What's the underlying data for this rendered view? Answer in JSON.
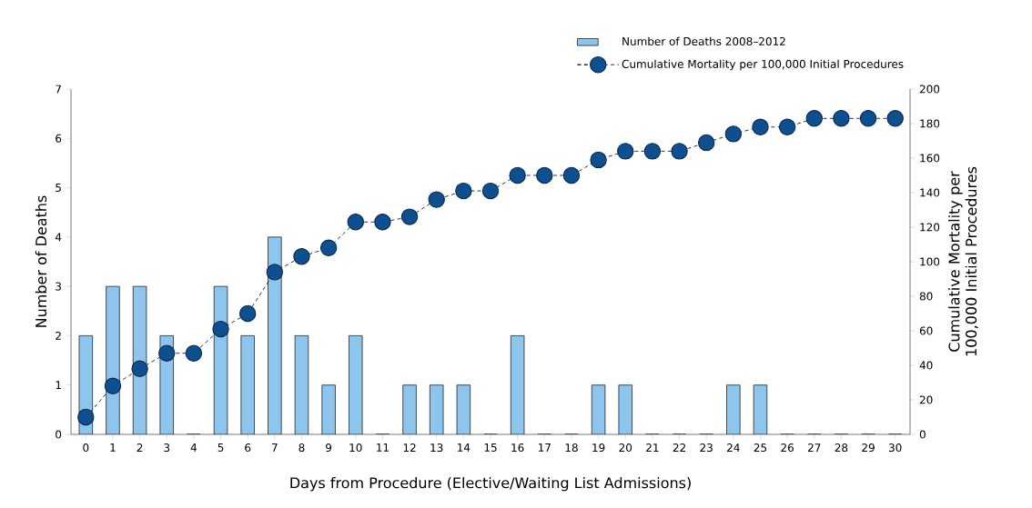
{
  "chart_data": {
    "type": "bar",
    "xlabel": "Days from Procedure (Elective/Waiting List Admissions)",
    "ylabel": "Number of Deaths",
    "y2label": "Cumulative Mortality per 100,000 Initial Procedures",
    "categories": [
      "0",
      "1",
      "2",
      "3",
      "4",
      "5",
      "6",
      "7",
      "8",
      "9",
      "10",
      "11",
      "12",
      "13",
      "14",
      "15",
      "16",
      "17",
      "18",
      "19",
      "20",
      "21",
      "22",
      "23",
      "24",
      "25",
      "26",
      "27",
      "28",
      "29",
      "30"
    ],
    "series": [
      {
        "name": "Number of Deaths 2008–2012",
        "color": "#8ec5ec",
        "values": [
          2,
          3,
          3,
          2,
          0,
          3,
          2,
          4,
          2,
          1,
          2,
          0,
          1,
          1,
          1,
          0,
          2,
          0,
          0,
          1,
          1,
          0,
          0,
          0,
          1,
          1,
          0,
          0,
          0,
          0,
          0
        ]
      },
      {
        "name": "Cumulative Mortality per 100,000 Initial Procedures",
        "type": "line",
        "axis": "y2",
        "color": "#0d4f8f",
        "marker": "circle",
        "line_style": "dashed",
        "values": [
          10,
          28,
          38,
          47,
          47,
          61,
          70,
          94,
          103,
          108,
          123,
          123,
          126,
          136,
          141,
          141,
          150,
          150,
          150,
          159,
          164,
          164,
          164,
          169,
          174,
          178,
          178,
          183,
          183,
          183,
          183
        ]
      }
    ],
    "ylim": [
      0,
      7
    ],
    "yticks": [
      0,
      1,
      2,
      3,
      4,
      5,
      6,
      7
    ],
    "y2lim": [
      0,
      200
    ],
    "y2ticks": [
      0,
      20,
      40,
      60,
      80,
      100,
      120,
      140,
      160,
      180,
      200
    ],
    "grid": false,
    "legend": "top right"
  }
}
